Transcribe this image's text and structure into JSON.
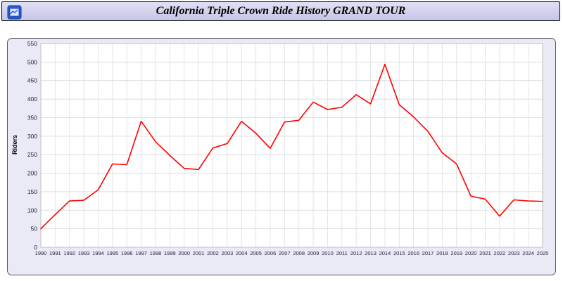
{
  "window": {
    "title": "California Triple Crown Ride History GRAND TOUR"
  },
  "colors": {
    "line": "#ff0000",
    "panel_bg": "#eaeaf6",
    "plot_bg": "#ffffff",
    "grid": "#dedede",
    "tick_text": "#1c1c3c",
    "titlebar_bg": "#ccccea"
  },
  "chart_data": {
    "type": "line",
    "title": "California Triple Crown Ride History GRAND TOUR",
    "xlabel": "",
    "ylabel": "Riders",
    "ylim": [
      0,
      550
    ],
    "ytick_step": 50,
    "yticks": [
      0,
      50,
      100,
      150,
      200,
      250,
      300,
      350,
      400,
      450,
      500,
      550
    ],
    "grid": true,
    "legend": "none",
    "x": [
      1990,
      1991,
      1992,
      1993,
      1994,
      1995,
      1996,
      1997,
      1998,
      1999,
      2000,
      2001,
      2002,
      2003,
      2004,
      2005,
      2006,
      2007,
      2008,
      2009,
      2010,
      2011,
      2012,
      2013,
      2014,
      2015,
      2016,
      2017,
      2018,
      2019,
      2020,
      2021,
      2022,
      2023,
      2024,
      2025
    ],
    "series": [
      {
        "name": "Riders",
        "color": "#ff0000",
        "values": [
          50,
          88,
          125,
          127,
          155,
          225,
          223,
          340,
          285,
          248,
          213,
          210,
          268,
          280,
          340,
          308,
          267,
          338,
          343,
          392,
          372,
          378,
          412,
          387,
          494,
          385,
          352,
          313,
          255,
          225,
          138,
          130,
          84,
          128,
          125,
          124
        ]
      }
    ]
  }
}
